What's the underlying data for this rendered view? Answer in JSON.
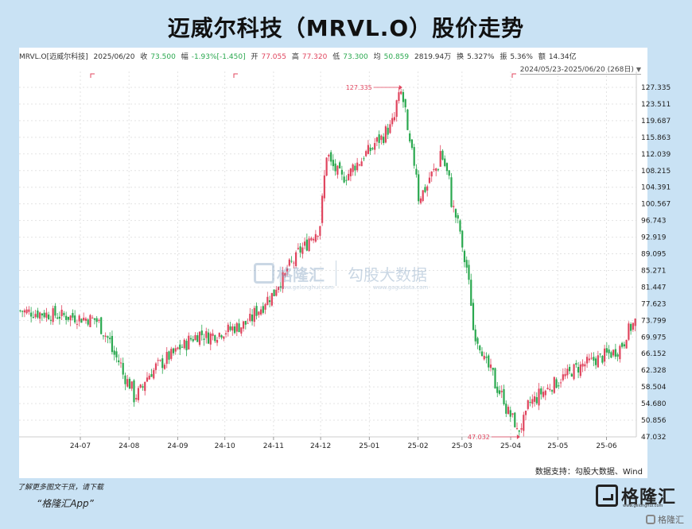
{
  "title": "迈威尔科技（MRVL.O）股价走势",
  "info": {
    "name": "MRVL.O[迈威尔科技]",
    "date": "2025/06/20",
    "close_label": "收",
    "close": "73.500",
    "change_label": "幅",
    "change": "-1.93%[-1.450]",
    "open_label": "开",
    "open": "77.055",
    "high_label": "高",
    "high": "77.320",
    "low_label": "低",
    "low": "73.300",
    "avg_label": "均",
    "avg": "50.859",
    "volume": "2819.94万",
    "turnover_label": "换",
    "turnover": "5.327%",
    "amplitude_label": "振",
    "amplitude": "5.36%",
    "amount_label": "额",
    "amount": "14.34亿"
  },
  "range_label": "2024/05/23-2025/06/20 (268日)",
  "source": "数据支持：勾股大数据、Wind",
  "download_note": "了解更多图文干货，请下载",
  "app_note": "“格隆汇App”",
  "brand": {
    "name": "格隆汇",
    "sub": "www.gelonghui.com"
  },
  "watermark": {
    "name": "格隆汇",
    "sub": "www.gelonghui.com",
    "second": "勾股大数据",
    "second_sub": "www.gogudata.com"
  },
  "footer_logo": "格隆汇",
  "colors": {
    "up": "#e0455e",
    "down": "#2aa84f",
    "background": "#c9e2f4"
  },
  "chart_data": {
    "type": "candlestick",
    "x_ticks": [
      "24-07",
      "24-08",
      "24-09",
      "24-10",
      "24-11",
      "24-12",
      "25-01",
      "25-02",
      "25-03",
      "25-04",
      "25-05",
      "25-06"
    ],
    "y_ticks": [
      "127.335",
      "123.511",
      "119.687",
      "115.863",
      "112.039",
      "108.215",
      "104.391",
      "100.567",
      "96.743",
      "92.919",
      "89.095",
      "85.271",
      "81.447",
      "77.623",
      "73.799",
      "69.975",
      "66.152",
      "62.328",
      "58.504",
      "54.680",
      "50.856",
      "47.032"
    ],
    "ylim": [
      47.032,
      127.335
    ],
    "annotations": [
      {
        "label": "127.335",
        "x": "2025-01-22",
        "y": 127.335
      },
      {
        "label": "47.032",
        "x": "2025-04-07",
        "y": 47.032
      }
    ],
    "monthly_path": [
      {
        "month": "2024-06",
        "value": 76
      },
      {
        "month": "2024-07",
        "value": 72
      },
      {
        "month": "2024-08",
        "value": 62
      },
      {
        "month": "2024-09",
        "value": 71
      },
      {
        "month": "2024-10",
        "value": 73
      },
      {
        "month": "2024-11",
        "value": 88
      },
      {
        "month": "2024-12",
        "value": 106
      },
      {
        "month": "2025-01",
        "value": 118
      },
      {
        "month": "2025-02",
        "value": 110
      },
      {
        "month": "2025-03",
        "value": 66
      },
      {
        "month": "2025-04",
        "value": 55
      },
      {
        "month": "2025-05",
        "value": 63
      },
      {
        "month": "2025-06",
        "value": 73.5
      }
    ]
  }
}
